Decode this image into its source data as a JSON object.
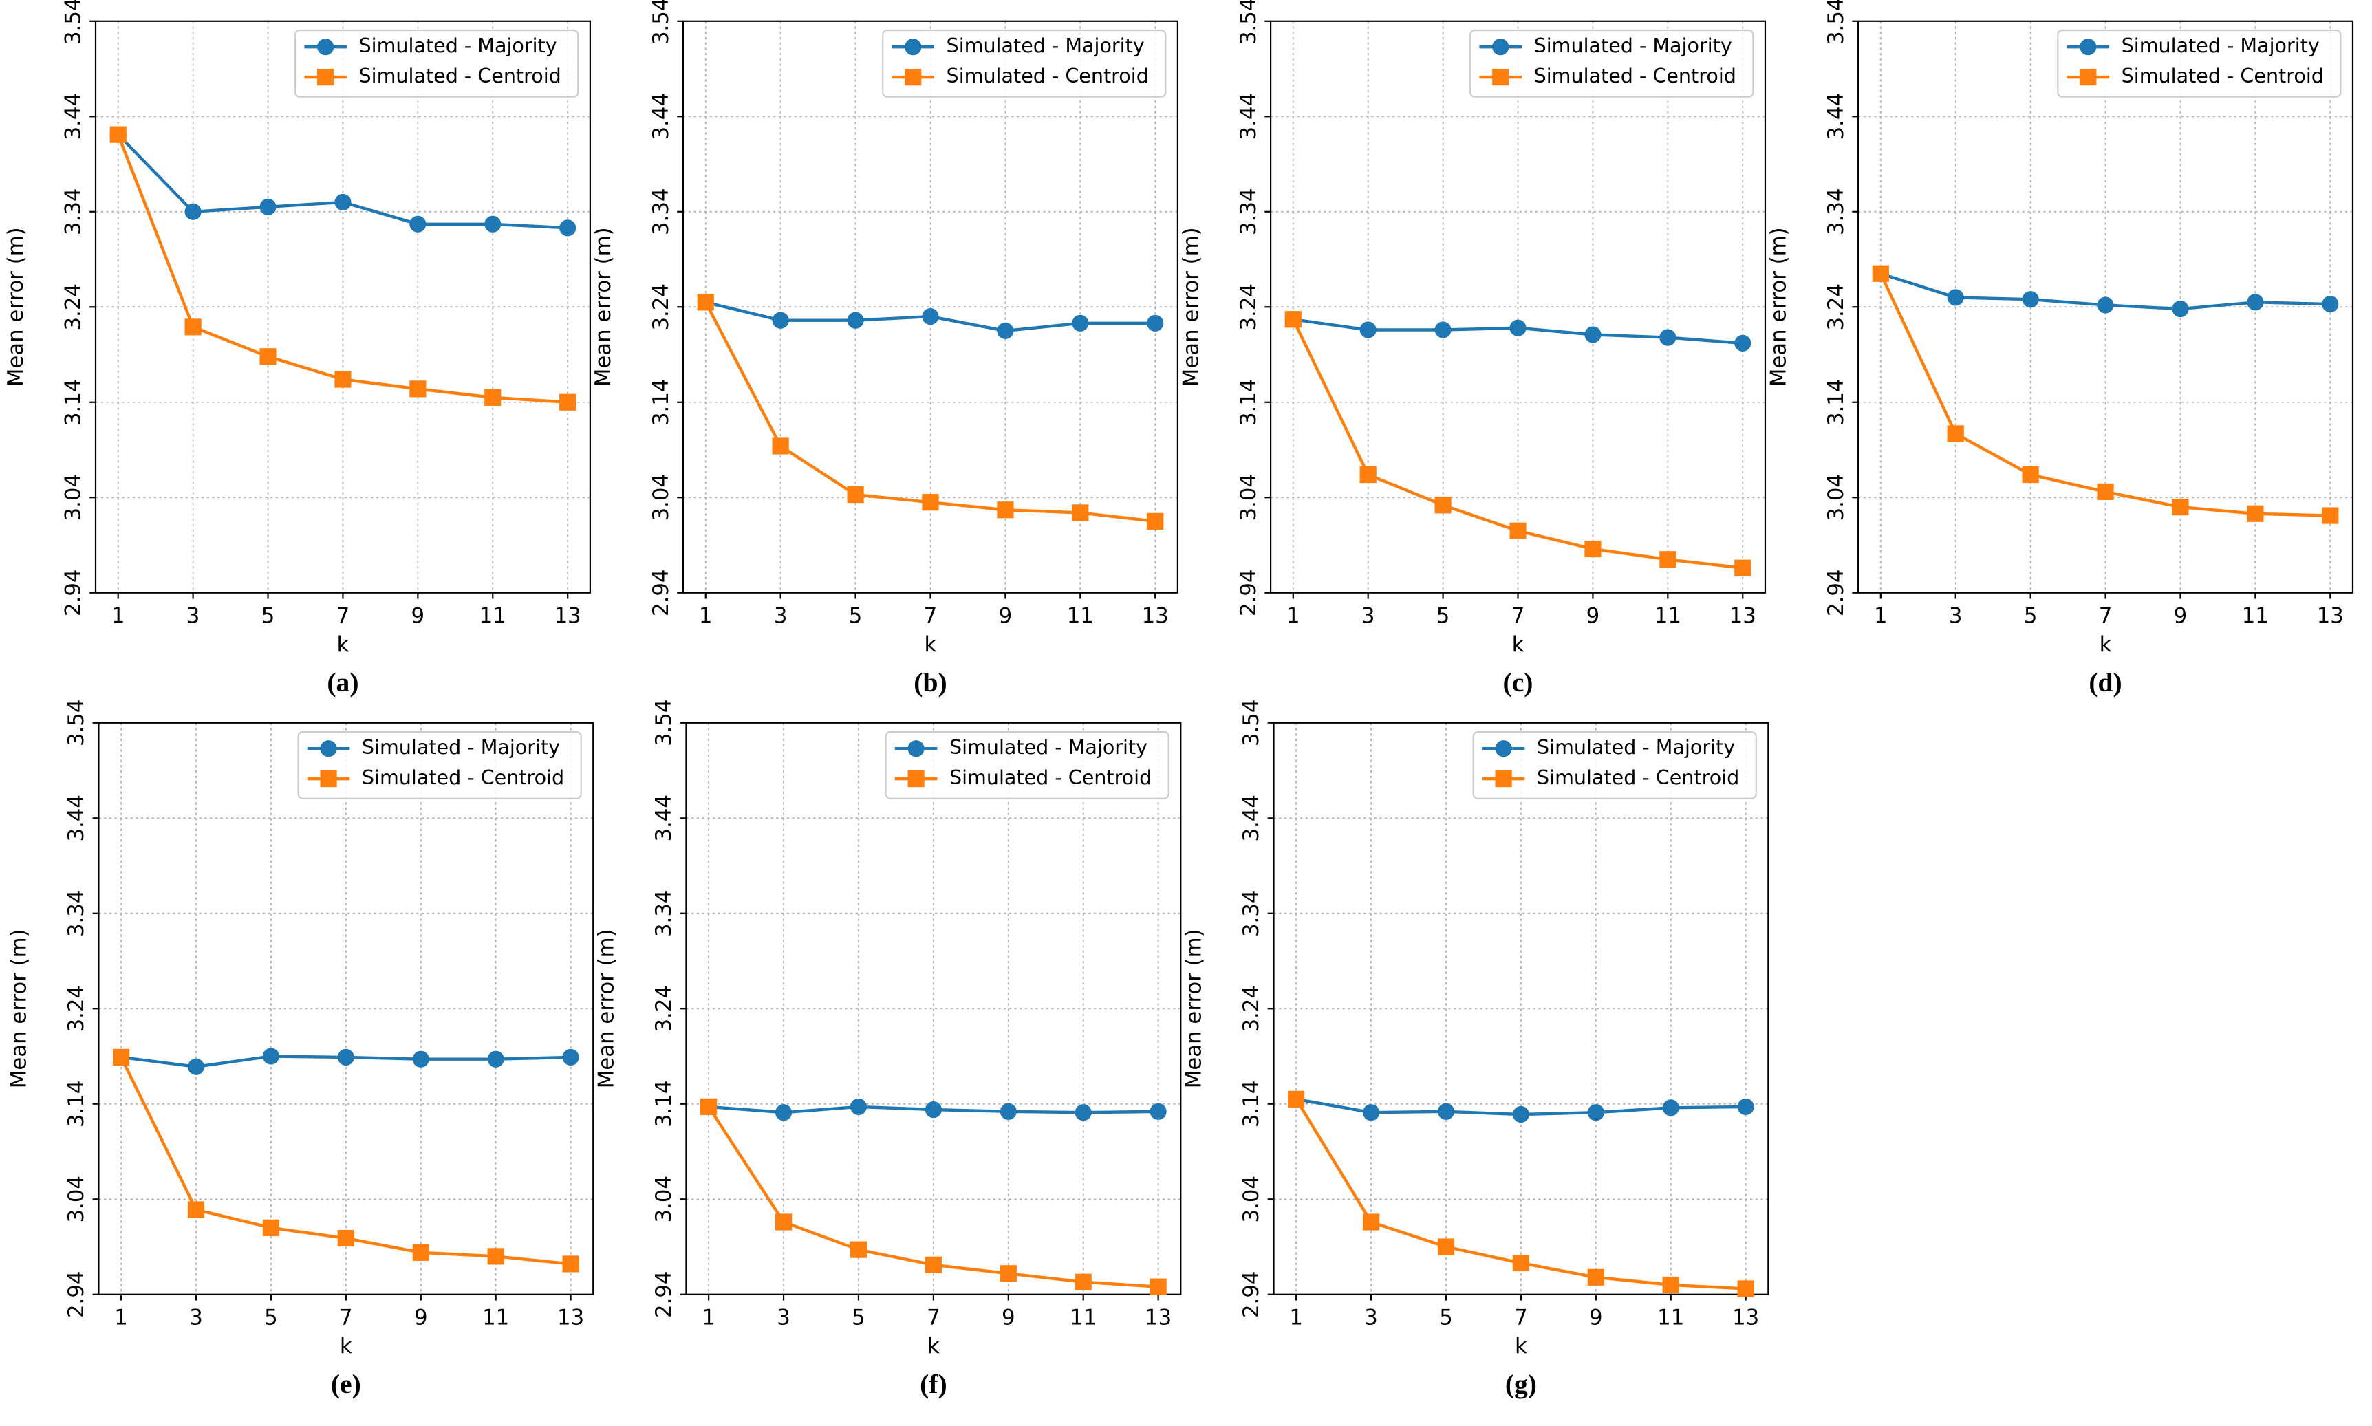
{
  "chart_data": [
    {
      "type": "line",
      "caption": "(a)",
      "xlabel": "k",
      "ylabel": "Mean error (m)",
      "x": [
        1,
        3,
        5,
        7,
        9,
        11,
        13
      ],
      "xlim": [
        0.4,
        13.6
      ],
      "xticks": [
        1,
        3,
        5,
        7,
        9,
        11,
        13
      ],
      "ylim": [
        2.94,
        3.54
      ],
      "yticks": [
        2.94,
        3.04,
        3.14,
        3.24,
        3.34,
        3.44,
        3.54
      ],
      "grid": true,
      "legend": "upper right",
      "series": [
        {
          "name": "Simulated - Majority",
          "color": "#1f77b4",
          "marker": "circle",
          "values": [
            3.421,
            3.34,
            3.345,
            3.35,
            3.327,
            3.327,
            3.323
          ]
        },
        {
          "name": "Simulated - Centroid",
          "color": "#ff7f0e",
          "marker": "square",
          "values": [
            3.421,
            3.219,
            3.188,
            3.164,
            3.154,
            3.145,
            3.14
          ]
        }
      ]
    },
    {
      "type": "line",
      "caption": "(b)",
      "xlabel": "k",
      "ylabel": "Mean error (m)",
      "x": [
        1,
        3,
        5,
        7,
        9,
        11,
        13
      ],
      "xlim": [
        0.4,
        13.6
      ],
      "xticks": [
        1,
        3,
        5,
        7,
        9,
        11,
        13
      ],
      "ylim": [
        2.94,
        3.54
      ],
      "yticks": [
        2.94,
        3.04,
        3.14,
        3.24,
        3.34,
        3.44,
        3.54
      ],
      "grid": true,
      "legend": "upper right",
      "series": [
        {
          "name": "Simulated - Majority",
          "color": "#1f77b4",
          "marker": "circle",
          "values": [
            3.245,
            3.226,
            3.226,
            3.23,
            3.215,
            3.223,
            3.223
          ]
        },
        {
          "name": "Simulated - Centroid",
          "color": "#ff7f0e",
          "marker": "square",
          "values": [
            3.245,
            3.094,
            3.043,
            3.035,
            3.027,
            3.024,
            3.015
          ]
        }
      ]
    },
    {
      "type": "line",
      "caption": "(c)",
      "xlabel": "k",
      "ylabel": "Mean error (m)",
      "x": [
        1,
        3,
        5,
        7,
        9,
        11,
        13
      ],
      "xlim": [
        0.4,
        13.6
      ],
      "xticks": [
        1,
        3,
        5,
        7,
        9,
        11,
        13
      ],
      "ylim": [
        2.94,
        3.54
      ],
      "yticks": [
        2.94,
        3.04,
        3.14,
        3.24,
        3.34,
        3.44,
        3.54
      ],
      "grid": true,
      "legend": "upper right",
      "series": [
        {
          "name": "Simulated - Majority",
          "color": "#1f77b4",
          "marker": "circle",
          "values": [
            3.227,
            3.216,
            3.216,
            3.218,
            3.211,
            3.208,
            3.202
          ]
        },
        {
          "name": "Simulated - Centroid",
          "color": "#ff7f0e",
          "marker": "square",
          "values": [
            3.227,
            3.064,
            3.032,
            3.005,
            2.986,
            2.975,
            2.966
          ]
        }
      ]
    },
    {
      "type": "line",
      "caption": "(d)",
      "xlabel": "k",
      "ylabel": "Mean error (m)",
      "x": [
        1,
        3,
        5,
        7,
        9,
        11,
        13
      ],
      "xlim": [
        0.4,
        13.6
      ],
      "xticks": [
        1,
        3,
        5,
        7,
        9,
        11,
        13
      ],
      "ylim": [
        2.94,
        3.54
      ],
      "yticks": [
        2.94,
        3.04,
        3.14,
        3.24,
        3.34,
        3.44,
        3.54
      ],
      "grid": true,
      "legend": "upper right",
      "series": [
        {
          "name": "Simulated - Majority",
          "color": "#1f77b4",
          "marker": "circle",
          "values": [
            3.275,
            3.25,
            3.248,
            3.242,
            3.238,
            3.245,
            3.243
          ]
        },
        {
          "name": "Simulated - Centroid",
          "color": "#ff7f0e",
          "marker": "square",
          "values": [
            3.275,
            3.107,
            3.064,
            3.046,
            3.03,
            3.023,
            3.021
          ]
        }
      ]
    },
    {
      "type": "line",
      "caption": "(e)",
      "xlabel": "k",
      "ylabel": "Mean error (m)",
      "x": [
        1,
        3,
        5,
        7,
        9,
        11,
        13
      ],
      "xlim": [
        0.4,
        13.6
      ],
      "xticks": [
        1,
        3,
        5,
        7,
        9,
        11,
        13
      ],
      "ylim": [
        2.94,
        3.54
      ],
      "yticks": [
        2.94,
        3.04,
        3.14,
        3.24,
        3.34,
        3.44,
        3.54
      ],
      "grid": true,
      "legend": "upper right",
      "series": [
        {
          "name": "Simulated - Majority",
          "color": "#1f77b4",
          "marker": "circle",
          "values": [
            3.189,
            3.179,
            3.19,
            3.189,
            3.187,
            3.187,
            3.189
          ]
        },
        {
          "name": "Simulated - Centroid",
          "color": "#ff7f0e",
          "marker": "square",
          "values": [
            3.189,
            3.029,
            3.01,
            2.999,
            2.984,
            2.98,
            2.972
          ]
        }
      ]
    },
    {
      "type": "line",
      "caption": "(f)",
      "xlabel": "k",
      "ylabel": "Mean error (m)",
      "x": [
        1,
        3,
        5,
        7,
        9,
        11,
        13
      ],
      "xlim": [
        0.4,
        13.6
      ],
      "xticks": [
        1,
        3,
        5,
        7,
        9,
        11,
        13
      ],
      "ylim": [
        2.94,
        3.54
      ],
      "yticks": [
        2.94,
        3.04,
        3.14,
        3.24,
        3.34,
        3.44,
        3.54
      ],
      "grid": true,
      "legend": "upper right",
      "series": [
        {
          "name": "Simulated - Majority",
          "color": "#1f77b4",
          "marker": "circle",
          "values": [
            3.137,
            3.131,
            3.137,
            3.134,
            3.132,
            3.131,
            3.132
          ]
        },
        {
          "name": "Simulated - Centroid",
          "color": "#ff7f0e",
          "marker": "square",
          "values": [
            3.137,
            3.016,
            2.987,
            2.971,
            2.962,
            2.953,
            2.948
          ]
        }
      ]
    },
    {
      "type": "line",
      "caption": "(g)",
      "xlabel": "k",
      "ylabel": "Mean error (m)",
      "x": [
        1,
        3,
        5,
        7,
        9,
        11,
        13
      ],
      "xlim": [
        0.4,
        13.6
      ],
      "xticks": [
        1,
        3,
        5,
        7,
        9,
        11,
        13
      ],
      "ylim": [
        2.94,
        3.54
      ],
      "yticks": [
        2.94,
        3.04,
        3.14,
        3.24,
        3.34,
        3.44,
        3.54
      ],
      "grid": true,
      "legend": "upper right",
      "series": [
        {
          "name": "Simulated - Majority",
          "color": "#1f77b4",
          "marker": "circle",
          "values": [
            3.145,
            3.131,
            3.132,
            3.129,
            3.131,
            3.136,
            3.137
          ]
        },
        {
          "name": "Simulated - Centroid",
          "color": "#ff7f0e",
          "marker": "square",
          "values": [
            3.145,
            3.016,
            2.99,
            2.973,
            2.958,
            2.95,
            2.946
          ]
        }
      ]
    }
  ]
}
